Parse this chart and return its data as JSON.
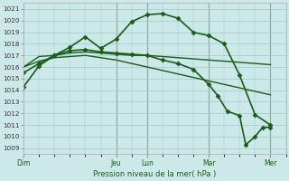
{
  "title": "Pression niveau de la mer( hPa )",
  "yticks": [
    1009,
    1010,
    1011,
    1012,
    1013,
    1014,
    1015,
    1016,
    1017,
    1018,
    1019,
    1020,
    1021
  ],
  "day_labels": [
    "Dim",
    "Jeu",
    "Lun",
    "Mar",
    "Mer"
  ],
  "day_positions": [
    0,
    3.0,
    4.0,
    6.0,
    8.0
  ],
  "vline_positions": [
    3.0,
    4.0,
    6.0,
    8.0
  ],
  "bg_color": "#cce8e8",
  "grid_color": "#99cccc",
  "line_color": "#1a5c1a",
  "xlim": [
    0,
    8.5
  ],
  "ylim": [
    1008.5,
    1021.5
  ],
  "series": [
    {
      "x": [
        0,
        0.5,
        1.0,
        1.5,
        2.0,
        2.5,
        3.0,
        3.5,
        4.0,
        4.5,
        5.0,
        5.5,
        6.0,
        6.5,
        7.0,
        7.5,
        8.0
      ],
      "y": [
        1014.3,
        1016.1,
        1017.0,
        1017.7,
        1018.6,
        1017.6,
        1018.4,
        1019.9,
        1020.5,
        1020.6,
        1020.2,
        1019.0,
        1018.7,
        1018.0,
        1015.3,
        1011.9,
        1011.0
      ],
      "marker": "D",
      "ms": 2.5,
      "lw": 1.2
    },
    {
      "x": [
        0,
        0.5,
        1.0,
        1.5,
        2.0,
        2.5,
        3.0,
        3.5,
        4.0,
        4.5,
        5.0,
        5.5,
        6.0,
        6.5,
        7.0,
        7.5,
        8.0
      ],
      "y": [
        1016.0,
        1016.9,
        1017.0,
        1017.2,
        1017.3,
        1017.2,
        1017.1,
        1017.0,
        1017.0,
        1016.9,
        1016.8,
        1016.7,
        1016.6,
        1016.5,
        1016.4,
        1016.3,
        1016.2
      ],
      "marker": null,
      "ms": 0,
      "lw": 1.0
    },
    {
      "x": [
        0,
        0.5,
        1.0,
        1.5,
        2.0,
        2.5,
        3.0,
        3.5,
        4.0,
        4.5,
        5.0,
        5.5,
        6.0,
        6.5,
        7.0,
        7.5,
        8.0
      ],
      "y": [
        1016.0,
        1016.5,
        1016.8,
        1016.9,
        1017.0,
        1016.8,
        1016.6,
        1016.3,
        1016.0,
        1015.7,
        1015.4,
        1015.1,
        1014.8,
        1014.5,
        1014.2,
        1013.9,
        1013.6
      ],
      "marker": null,
      "ms": 0,
      "lw": 1.0
    },
    {
      "x": [
        0,
        0.5,
        1.0,
        1.5,
        2.0,
        2.5,
        3.0,
        3.5,
        4.0,
        4.5,
        5.0,
        5.5,
        6.0,
        6.3,
        6.6,
        7.0,
        7.2,
        7.5,
        7.75,
        8.0
      ],
      "y": [
        1015.5,
        1016.3,
        1017.0,
        1017.4,
        1017.5,
        1017.3,
        1017.2,
        1017.1,
        1017.0,
        1016.6,
        1016.3,
        1015.8,
        1014.5,
        1013.5,
        1012.2,
        1011.8,
        1009.3,
        1010.0,
        1010.8,
        1010.8
      ],
      "marker": "D",
      "ms": 2.5,
      "lw": 1.2
    }
  ]
}
